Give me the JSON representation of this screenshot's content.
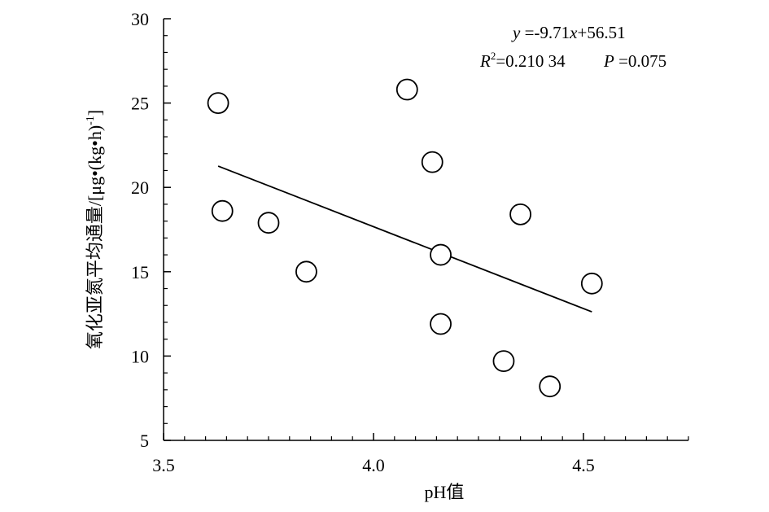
{
  "chart_data": {
    "type": "scatter",
    "title": "",
    "xlabel": "pH值",
    "ylabel_main": "氧化亚氮平均通量/[μg•(kg•h)",
    "ylabel_sup": "-1",
    "ylabel_end": "]",
    "xlim": [
      3.5,
      4.75
    ],
    "ylim": [
      5,
      30
    ],
    "xticks": [
      3.5,
      4.0,
      4.5
    ],
    "xtick_labels": [
      "3.5",
      "4.0",
      "4.5"
    ],
    "yticks": [
      5,
      10,
      15,
      20,
      25,
      30
    ],
    "ytick_labels": [
      "5",
      "10",
      "15",
      "20",
      "25",
      "30"
    ],
    "grid": false,
    "series": [
      {
        "points": [
          {
            "x": 3.63,
            "y": 25.0
          },
          {
            "x": 3.64,
            "y": 18.6
          },
          {
            "x": 3.75,
            "y": 17.9
          },
          {
            "x": 3.84,
            "y": 15.0
          },
          {
            "x": 4.08,
            "y": 25.8
          },
          {
            "x": 4.14,
            "y": 21.5
          },
          {
            "x": 4.16,
            "y": 16.0
          },
          {
            "x": 4.16,
            "y": 11.9
          },
          {
            "x": 4.31,
            "y": 9.7
          },
          {
            "x": 4.35,
            "y": 18.4
          },
          {
            "x": 4.42,
            "y": 8.2
          },
          {
            "x": 4.52,
            "y": 14.3
          }
        ]
      }
    ],
    "fit_line": {
      "slope": -9.71,
      "intercept": 56.51,
      "x_range": [
        3.63,
        4.52
      ]
    },
    "annotations": {
      "equation": {
        "y_var": "y",
        "middle": " =-9.71",
        "x_var": "x",
        "end": "+56.51"
      },
      "stats": {
        "r_var": "R",
        "r_sup": "2",
        "r_value": "=0.210 34",
        "p_var": "P",
        "p_value": " =0.075"
      }
    }
  }
}
